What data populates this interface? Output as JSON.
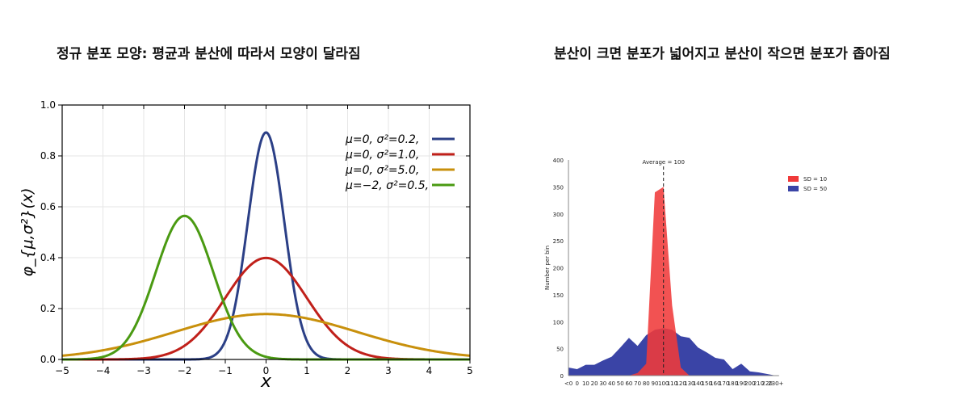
{
  "headings": {
    "left": "정규 분포 모양: 평균과 분산에 따라서 모양이 달라짐",
    "right": "분산이 크면 분포가 넓어지고 분산이 작으면 분포가 좁아짐"
  },
  "chart_data": [
    {
      "type": "line",
      "xlabel": "x",
      "ylabel": "φ_{μ,σ²}(x)",
      "xlim": [
        -5,
        5
      ],
      "ylim": [
        0,
        1.0
      ],
      "xticks": [
        "−5",
        "−4",
        "−3",
        "−2",
        "−1",
        "0",
        "1",
        "2",
        "3",
        "4",
        "5"
      ],
      "yticks": [
        "0.0",
        "0.2",
        "0.4",
        "0.6",
        "0.8",
        "1.0"
      ],
      "grid": true,
      "legend_position": "top-right",
      "series": [
        {
          "name": "μ=0,   σ²=0.2,",
          "mu": 0,
          "var": 0.2,
          "color": "#2b3f86"
        },
        {
          "name": "μ=0,   σ²=1.0,",
          "mu": 0,
          "var": 1.0,
          "color": "#c0201a"
        },
        {
          "name": "μ=0,   σ²=5.0,",
          "mu": 0,
          "var": 5.0,
          "color": "#c8900c"
        },
        {
          "name": "μ=−2, σ²=0.5,",
          "mu": -2,
          "var": 0.5,
          "color": "#4a9a12"
        }
      ]
    },
    {
      "type": "area",
      "ylabel": "Number per bin",
      "ylim": [
        0,
        400
      ],
      "yticks": [
        "0",
        "50",
        "100",
        "150",
        "200",
        "250",
        "300",
        "350",
        "400"
      ],
      "x": [
        "<0",
        "0",
        "10",
        "20",
        "30",
        "40",
        "50",
        "60",
        "70",
        "80",
        "90",
        "100",
        "110",
        "120",
        "130",
        "140",
        "150",
        "160",
        "170",
        "180",
        "190",
        "200",
        "210",
        "220",
        "230+"
      ],
      "annotation": "Average = 100",
      "legend_position": "top-right",
      "series": [
        {
          "name": "SD = 50",
          "color": "#3a44a6",
          "values": [
            15,
            12,
            20,
            20,
            28,
            35,
            52,
            70,
            55,
            75,
            85,
            88,
            85,
            73,
            70,
            52,
            43,
            33,
            30,
            12,
            22,
            8,
            6,
            3,
            0
          ]
        },
        {
          "name": "SD = 10",
          "color": "#f03a3a",
          "values": [
            0,
            0,
            0,
            0,
            0,
            0,
            0,
            0,
            5,
            22,
            340,
            350,
            130,
            15,
            0,
            0,
            0,
            0,
            0,
            0,
            0,
            0,
            0,
            0,
            0
          ]
        }
      ]
    }
  ]
}
